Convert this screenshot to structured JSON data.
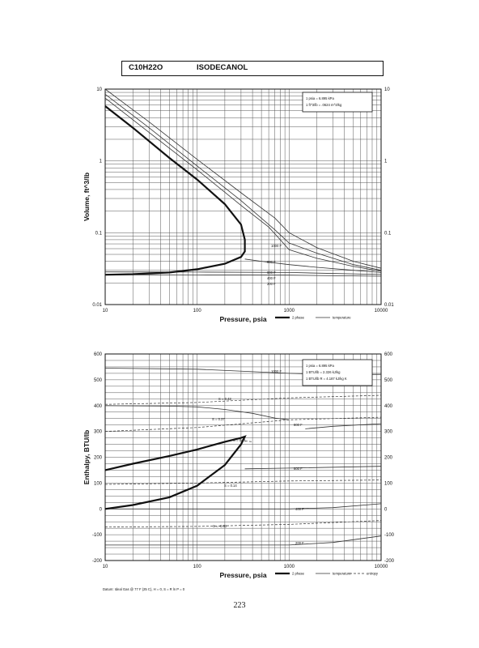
{
  "header": {
    "formula": "C10H22O",
    "compound": "ISODECANOL"
  },
  "page_number": "223",
  "chart_data": [
    {
      "type": "line",
      "xscale": "log",
      "yscale": "log",
      "xlim": [
        10,
        10000
      ],
      "ylim": [
        0.01,
        10
      ],
      "x_ticks": [
        "10",
        "100",
        "1000",
        "10000"
      ],
      "y_ticks": [
        "0.01",
        "0.1",
        "1",
        "10"
      ],
      "xlabel": "Pressure,  psia",
      "ylabel": "Volume, ft^3/lb",
      "grid": true,
      "conversions": [
        "1 psia = 6.895 kPa",
        "1 ft^3/lb = .0624 m^3/kg"
      ],
      "legend": [
        "2 phase",
        "temperature"
      ],
      "dome": {
        "name": "2 phase",
        "x": [
          10,
          20,
          50,
          100,
          200,
          300,
          330,
          330,
          300,
          200,
          100,
          50,
          20,
          10
        ],
        "y": [
          5.8,
          2.9,
          1.1,
          0.55,
          0.25,
          0.13,
          0.08,
          0.055,
          0.046,
          0.037,
          0.031,
          0.028,
          0.0265,
          0.026
        ]
      },
      "isotherms": [
        {
          "label": "1000 F",
          "x": [
            10,
            30,
            100,
            300,
            700,
            1000,
            2000,
            5000,
            10000
          ],
          "y": [
            10,
            3.5,
            1.05,
            0.36,
            0.16,
            0.1,
            0.062,
            0.04,
            0.032
          ]
        },
        {
          "label": "",
          "x": [
            10,
            30,
            100,
            300,
            700,
            1000,
            2000,
            5000,
            10000
          ],
          "y": [
            8.5,
            2.9,
            0.85,
            0.28,
            0.11,
            0.072,
            0.052,
            0.036,
            0.03
          ]
        },
        {
          "label": "800 F",
          "x": [
            10,
            30,
            100,
            300,
            600,
            800,
            1000,
            2000,
            5000,
            10000
          ],
          "y": [
            7.5,
            2.5,
            0.75,
            0.24,
            0.12,
            0.08,
            0.058,
            0.044,
            0.034,
            0.029
          ]
        },
        {
          "label": "600 F",
          "x": [
            330,
            500,
            1000,
            2000,
            5000,
            10000
          ],
          "y": [
            0.043,
            0.04,
            0.036,
            0.033,
            0.03,
            0.028
          ]
        },
        {
          "label": "400 F",
          "x": [
            10,
            100,
            1000,
            10000
          ],
          "y": [
            0.0285,
            0.0283,
            0.028,
            0.0262
          ]
        },
        {
          "label": "200 F",
          "x": [
            10,
            100,
            1000,
            10000
          ],
          "y": [
            0.026,
            0.0259,
            0.0257,
            0.0248
          ]
        }
      ]
    },
    {
      "type": "line",
      "xscale": "log",
      "yscale": "linear",
      "xlim": [
        10,
        10000
      ],
      "ylim": [
        -200,
        600
      ],
      "x_ticks": [
        "10",
        "100",
        "1000",
        "10000"
      ],
      "y_ticks": [
        "-200",
        "-100",
        "0",
        "100",
        "200",
        "300",
        "400",
        "500",
        "600"
      ],
      "xlabel": "Pressure,  psia",
      "ylabel": "Enthalpy, BTU/lb",
      "grid": true,
      "conversions": [
        "1 psia = 6.895 kPa",
        "1 BTU/lb = 2.326 kJ/kg",
        "1 BTU/lb R = 4.187 kJ/kg K"
      ],
      "footnote": "Datum: Ideal Gas @ 77 F (25 C),  H = 0,  S = R ln P = 0",
      "legend": [
        "2 phase",
        "temperature",
        "entropy"
      ],
      "dome": {
        "name": "2 phase",
        "x": [
          10,
          20,
          50,
          100,
          200,
          300,
          330,
          300,
          200,
          100,
          50,
          20,
          10
        ],
        "y": [
          150,
          175,
          205,
          230,
          260,
          275,
          280,
          250,
          170,
          90,
          45,
          15,
          0
        ]
      },
      "isotherms": [
        {
          "label": "1000 F",
          "x": [
            10,
            100,
            1000,
            3000,
            10000
          ],
          "y": [
            545,
            541,
            525,
            520,
            521
          ]
        },
        {
          "label": "800 F",
          "x": [
            10,
            50,
            100,
            200,
            400,
            700,
            1000
          ],
          "y": [
            400,
            398,
            395,
            385,
            370,
            352,
            345
          ]
        },
        {
          "label": "",
          "x": [
            1500,
            3000,
            10000
          ],
          "y": [
            310,
            320,
            330
          ]
        },
        {
          "label": "600 F",
          "x": [
            330,
            1000,
            10000
          ],
          "y": [
            155,
            158,
            165
          ]
        },
        {
          "label": "400 F",
          "x": [
            10,
            1000,
            3000,
            10000
          ],
          "y": [
            0,
            0,
            5,
            20
          ]
        },
        {
          "label": "200 F",
          "x": [
            10,
            1000,
            3000,
            10000
          ],
          "y": [
            -140,
            -140,
            -130,
            -105
          ]
        }
      ],
      "entropy_lines": [
        {
          "label": "S = 0.43",
          "x": [
            10,
            100,
            1000,
            10000
          ],
          "y": [
            405,
            412,
            430,
            440
          ]
        },
        {
          "label": "S = 0.37",
          "x": [
            10,
            100,
            1000,
            10000
          ],
          "y": [
            300,
            315,
            345,
            355
          ]
        },
        {
          "label": "S = 0.31",
          "x": [
            300,
            400
          ],
          "y": [
            265,
            260
          ]
        },
        {
          "label": "S = 0.14",
          "x": [
            10,
            100,
            1000,
            10000
          ],
          "y": [
            95,
            100,
            108,
            112
          ]
        },
        {
          "label": "S = -0.03",
          "x": [
            10,
            100,
            1000,
            10000
          ],
          "y": [
            -70,
            -68,
            -60,
            -45
          ]
        }
      ]
    }
  ]
}
